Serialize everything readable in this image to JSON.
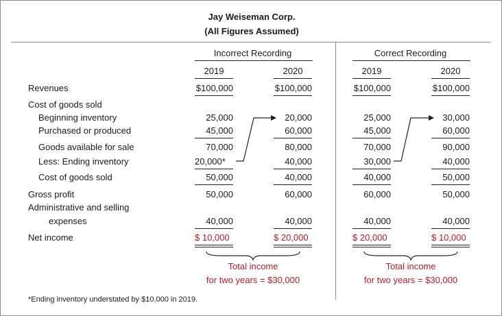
{
  "header": {
    "company": "Jay Weiseman Corp.",
    "subtitle": "(All Figures Assumed)"
  },
  "groups": {
    "incorrect": "Incorrect Recording",
    "correct": "Correct Recording"
  },
  "years": {
    "y1": "2019",
    "y2": "2020"
  },
  "rows": {
    "revenues": "Revenues",
    "cogs": "Cost of goods sold",
    "begin_inv": "Beginning inventory",
    "purchased": "Purchased or produced",
    "available": "Goods available for sale",
    "less_end": "Less: Ending inventory",
    "cogs_total": "Cost of goods sold",
    "gross": "Gross profit",
    "admin1": "Administrative and selling",
    "admin2": "expenses",
    "net": "Net income"
  },
  "incorrect": {
    "revenues": [
      "$100,000",
      "$100,000"
    ],
    "begin_inv": [
      "25,000",
      "20,000"
    ],
    "purchased": [
      "45,000",
      "60,000"
    ],
    "available": [
      "70,000",
      "80,000"
    ],
    "less_end": [
      "20,000*",
      "40,000"
    ],
    "cogs_total": [
      "50,000",
      "40,000"
    ],
    "gross": [
      "50,000",
      "60,000"
    ],
    "admin": [
      "40,000",
      "40,000"
    ],
    "net": [
      "$ 10,000",
      "$ 20,000"
    ]
  },
  "correct": {
    "revenues": [
      "$100,000",
      "$100,000"
    ],
    "begin_inv": [
      "25,000",
      "30,000"
    ],
    "purchased": [
      "45,000",
      "60,000"
    ],
    "available": [
      "70,000",
      "90,000"
    ],
    "less_end": [
      "30,000",
      "40,000"
    ],
    "cogs_total": [
      "40,000",
      "50,000"
    ],
    "gross": [
      "60,000",
      "50,000"
    ],
    "admin": [
      "40,000",
      "40,000"
    ],
    "net": [
      "$ 20,000",
      "$ 10,000"
    ]
  },
  "totals": {
    "incorrect_line1": "Total income",
    "incorrect_line2": "for two years = $30,000",
    "correct_line1": "Total income",
    "correct_line2": "for two years = $30,000"
  },
  "footnote": "*Ending inventory understated by $10,000 in 2019.",
  "colors": {
    "accent_red": "#b01c2a",
    "frame": "#8a8a8a",
    "rule": "#222222"
  }
}
